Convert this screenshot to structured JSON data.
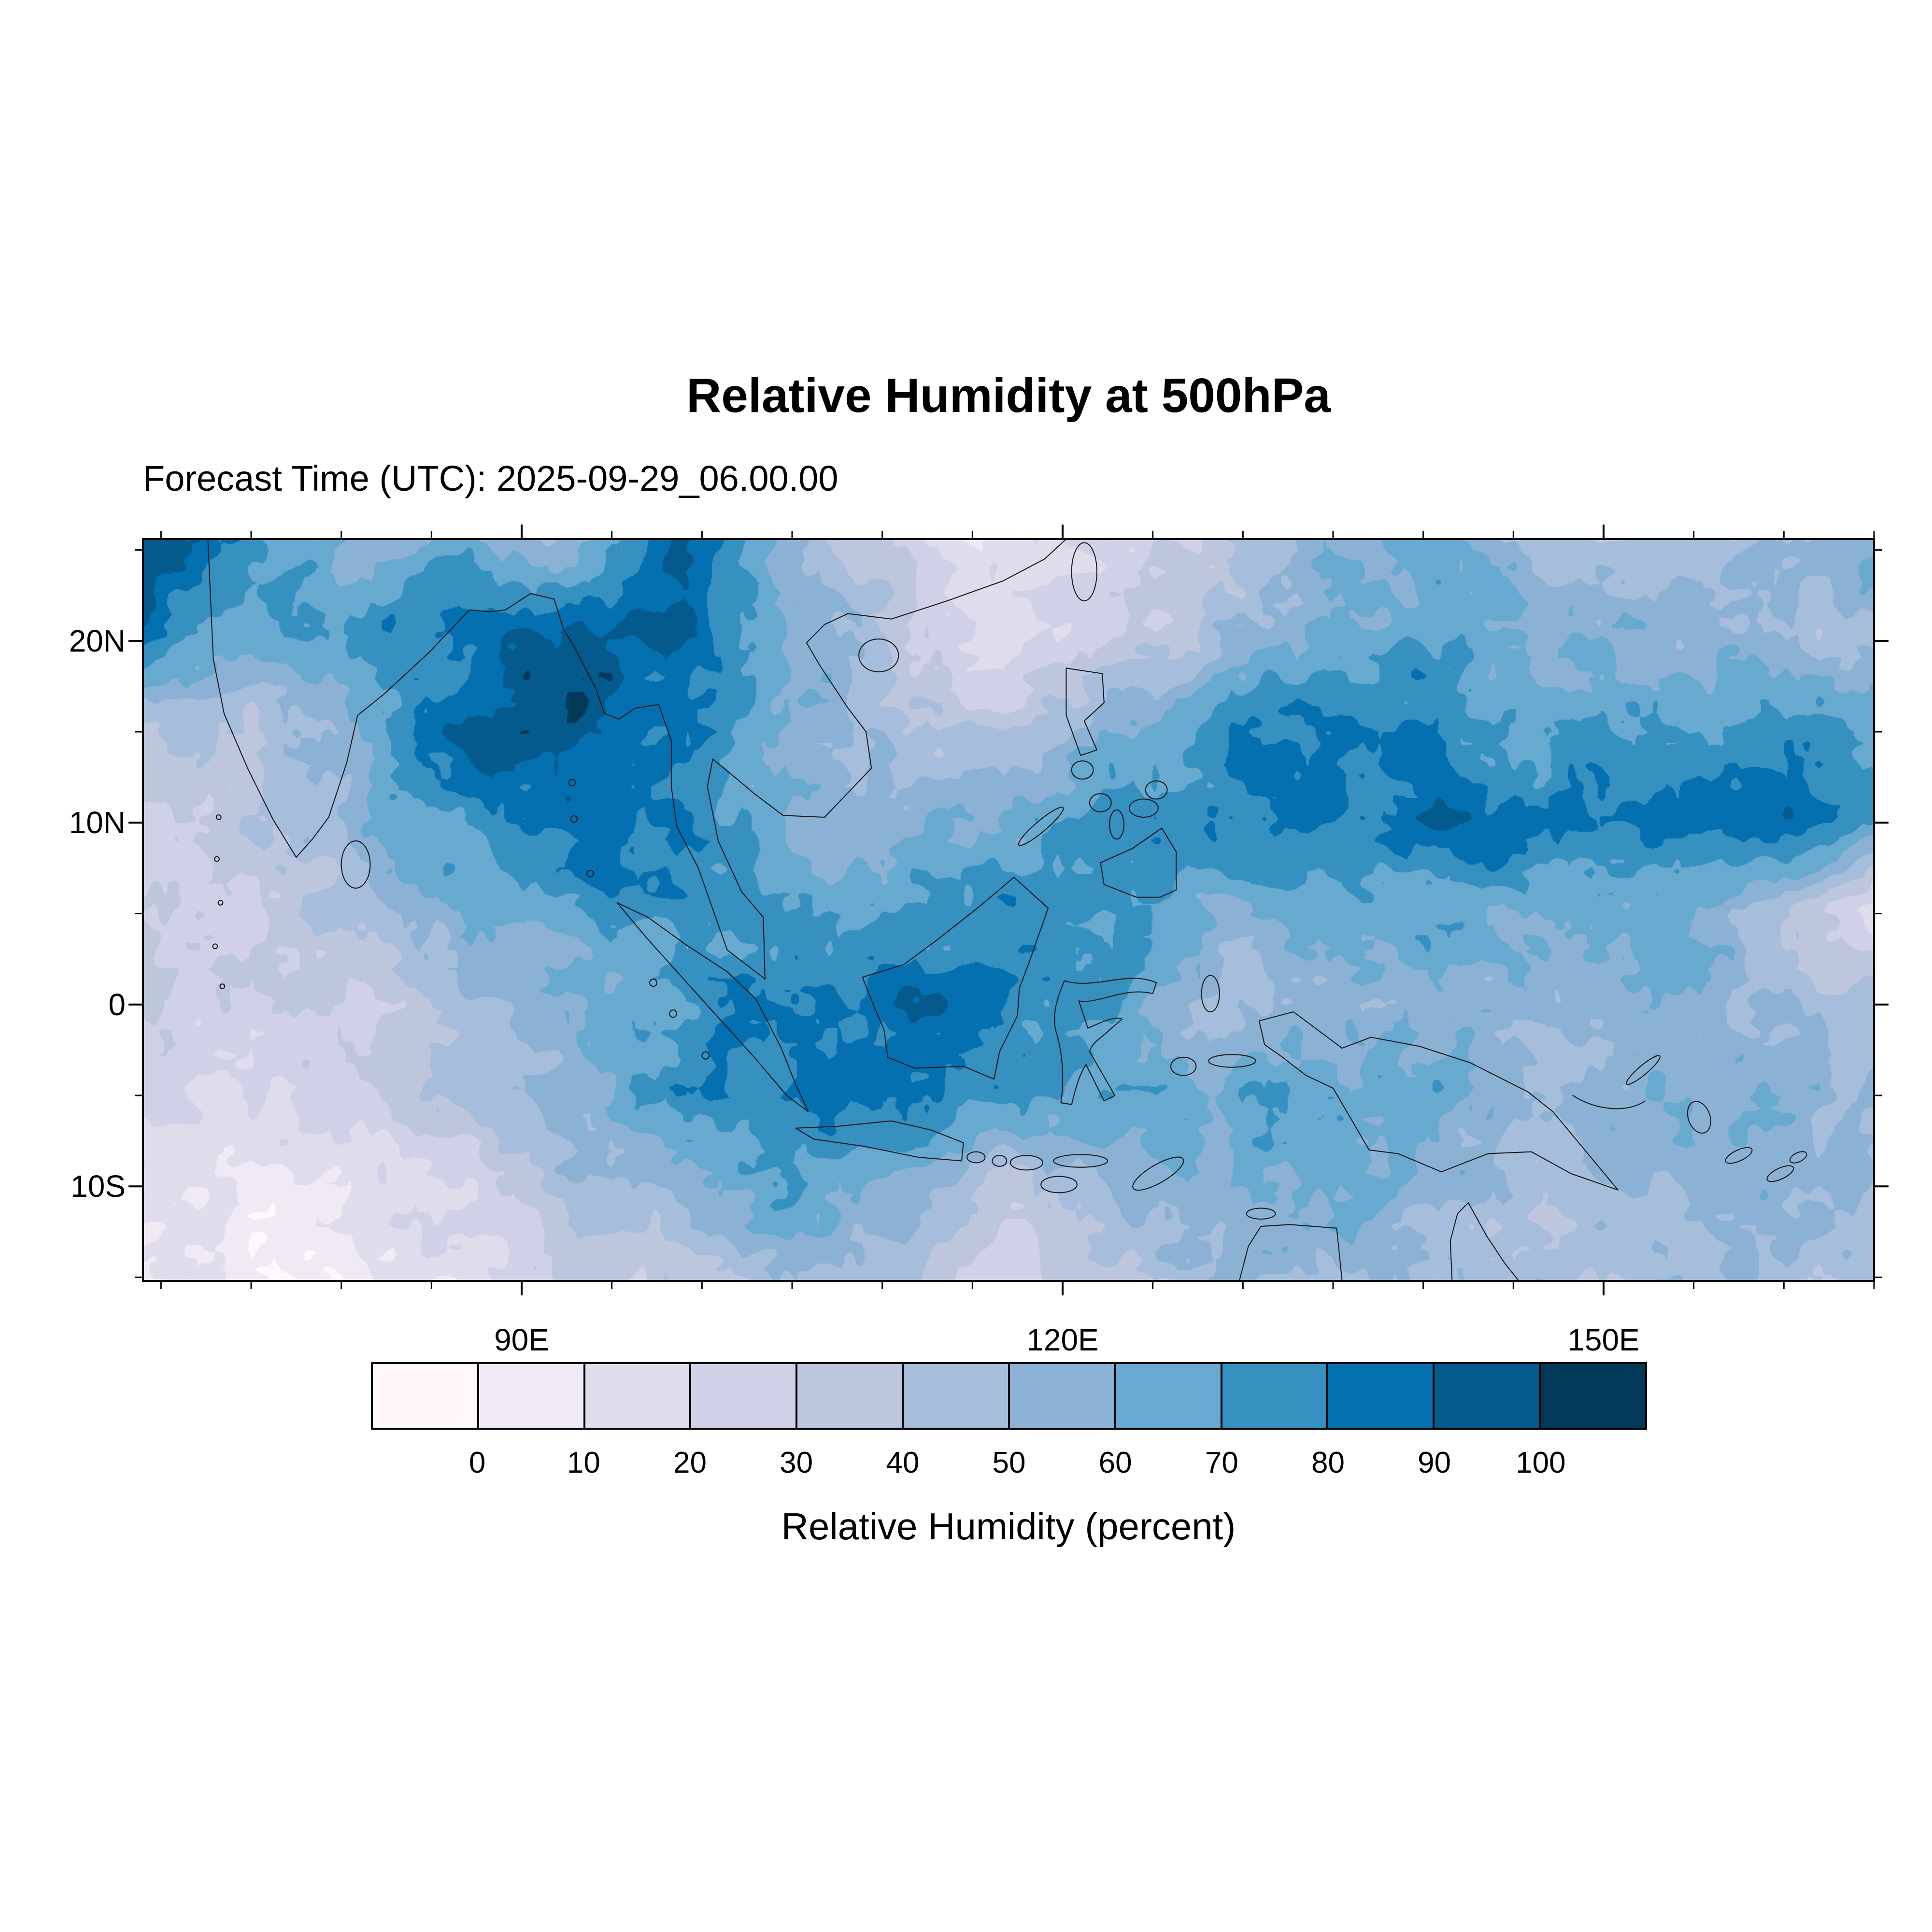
{
  "figure": {
    "title": "Relative Humidity at 500hPa",
    "subtitle": "Forecast Time (UTC): 2025-09-29_06.00.00"
  },
  "chart_data": {
    "type": "heatmap",
    "title": "Relative Humidity at 500hPa",
    "forecast_time_label": "Forecast Time (UTC): 2025-09-29_06.00.00",
    "forecast_time_utc": "2025-09-29_06.00.00",
    "variable": "Relative Humidity",
    "pressure_level": "500hPa",
    "units": "percent",
    "grid_lines": false,
    "legend_position": "bottom",
    "x_axis": {
      "range": [
        69,
        165
      ],
      "ticks": [
        {
          "label": "90E",
          "lon": 90
        },
        {
          "label": "120E",
          "lon": 120
        },
        {
          "label": "150E",
          "lon": 150
        }
      ],
      "minor_step_deg": 5
    },
    "y_axis": {
      "range": [
        -15.2,
        25.6
      ],
      "ticks": [
        {
          "label": "20N",
          "lat": 20
        },
        {
          "label": "10N",
          "lat": 10
        },
        {
          "label": "0",
          "lat": 0
        },
        {
          "label": "10S",
          "lat": -10
        }
      ],
      "minor_step_deg": 5
    },
    "colorbar": {
      "label": "Relative Humidity (percent)",
      "tick_labels": [
        "0",
        "10",
        "20",
        "30",
        "40",
        "50",
        "60",
        "70",
        "80",
        "90",
        "100"
      ],
      "colors": [
        "#fff7fb",
        "#f0eaf4",
        "#dfddec",
        "#d0d1e6",
        "#bec6de",
        "#a6bddb",
        "#8bb2d4",
        "#67a9cf",
        "#3690c0",
        "#0570b0",
        "#045a8d",
        "#023858"
      ]
    },
    "grid": {
      "comment": "Approximate relative humidity (percent) sampled from the shaded field on a coarse lon/lat grid; rows ordered north to south.",
      "lons": [
        69,
        75,
        81,
        87,
        93,
        99,
        105,
        111,
        117,
        123,
        129,
        135,
        141,
        147,
        153,
        159,
        165
      ],
      "lats": [
        25.6,
        20.5,
        15.4,
        10.3,
        5.2,
        0.1,
        -5.0,
        -10.1,
        -15.2
      ],
      "values": [
        [
          95,
          80,
          55,
          65,
          50,
          90,
          55,
          25,
          12,
          18,
          35,
          55,
          60,
          45,
          40,
          55,
          60
        ],
        [
          90,
          65,
          75,
          85,
          92,
          95,
          60,
          35,
          15,
          25,
          45,
          65,
          70,
          60,
          55,
          50,
          45
        ],
        [
          45,
          40,
          60,
          90,
          95,
          85,
          60,
          40,
          35,
          55,
          70,
          80,
          75,
          70,
          70,
          75,
          70
        ],
        [
          30,
          35,
          55,
          80,
          85,
          80,
          55,
          55,
          65,
          75,
          80,
          85,
          92,
          80,
          85,
          92,
          80
        ],
        [
          30,
          30,
          45,
          60,
          70,
          75,
          70,
          70,
          75,
          70,
          55,
          60,
          65,
          60,
          70,
          40,
          12
        ],
        [
          35,
          30,
          35,
          45,
          55,
          70,
          80,
          85,
          80,
          70,
          45,
          50,
          55,
          45,
          55,
          50,
          40
        ],
        [
          25,
          20,
          30,
          40,
          55,
          75,
          85,
          80,
          70,
          65,
          60,
          70,
          65,
          50,
          60,
          55,
          50
        ],
        [
          15,
          8,
          15,
          25,
          45,
          55,
          70,
          60,
          35,
          50,
          60,
          65,
          55,
          45,
          50,
          55,
          50
        ],
        [
          10,
          5,
          8,
          15,
          25,
          35,
          45,
          40,
          20,
          40,
          55,
          50,
          45,
          40,
          45,
          50,
          45
        ]
      ]
    }
  }
}
